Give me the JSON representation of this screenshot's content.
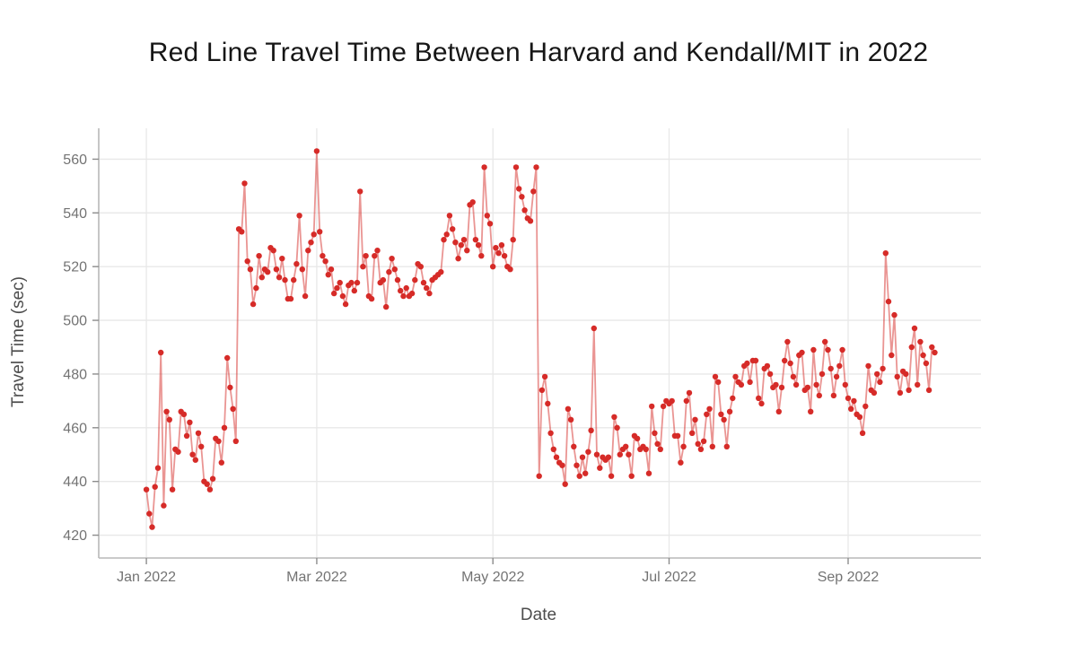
{
  "title": "Red Line Travel Time Between Harvard and Kendall/MIT in 2022",
  "chart_data": {
    "type": "line",
    "title": "Red Line Travel Time Between Harvard and Kendall/MIT in 2022",
    "xlabel": "Date",
    "ylabel": "Travel Time (sec)",
    "legend": "none",
    "grid": true,
    "x_index_unit": "days since Jan 1, 2022 (one point per day)",
    "x_tick_labels": [
      "Jan 2022",
      "Mar 2022",
      "May 2022",
      "Jul 2022",
      "Sep 2022"
    ],
    "x_tick_days": [
      0,
      59,
      120,
      181,
      243
    ],
    "xlim_days": [
      -16.5,
      289
    ],
    "y_ticks": [
      420,
      440,
      460,
      480,
      500,
      520,
      540,
      560
    ],
    "ylim": [
      411.5,
      571.5
    ],
    "colors": {
      "point": "#d62b28",
      "line": "#d62b28",
      "grid": "#e8e8e8",
      "axis_line": "#b8b8b8",
      "tick_mark": "#8c8c8c",
      "tick_label": "#737373"
    },
    "line_opacity": 0.5,
    "series": [
      {
        "name": "travel_time_sec",
        "start_day": 0,
        "values": [
          437,
          428,
          423,
          438,
          445,
          488,
          431,
          466,
          463,
          437,
          452,
          451,
          466,
          465,
          457,
          462,
          450,
          448,
          458,
          453,
          440,
          439,
          437,
          441,
          456,
          455,
          447,
          460,
          486,
          475,
          467,
          455,
          534,
          533,
          551,
          522,
          519,
          506,
          512,
          524,
          516,
          519,
          518,
          527,
          526,
          519,
          516,
          523,
          515,
          508,
          508,
          515,
          521,
          539,
          519,
          509,
          526,
          529,
          532,
          563,
          533,
          524,
          522,
          517,
          519,
          510,
          512,
          514,
          509,
          506,
          513,
          514,
          511,
          514,
          548,
          520,
          524,
          509,
          508,
          524,
          526,
          514,
          515,
          505,
          518,
          523,
          519,
          515,
          511,
          509,
          512,
          509,
          510,
          515,
          521,
          520,
          514,
          512,
          510,
          515,
          516,
          517,
          518,
          530,
          532,
          539,
          534,
          529,
          523,
          528,
          530,
          526,
          543,
          544,
          530,
          528,
          524,
          557,
          539,
          536,
          520,
          527,
          525,
          528,
          524,
          520,
          519,
          530,
          557,
          549,
          546,
          541,
          538,
          537,
          548,
          557,
          442,
          474,
          479,
          469,
          458,
          452,
          449,
          447,
          446,
          439,
          467,
          463,
          453,
          446,
          442,
          449,
          443,
          451,
          459,
          497,
          450,
          445,
          449,
          448,
          449,
          442,
          464,
          460,
          450,
          452,
          453,
          450,
          442,
          457,
          456,
          452,
          453,
          452,
          443,
          468,
          458,
          454,
          452,
          468,
          470,
          469,
          470,
          457,
          457,
          447,
          453,
          470,
          473,
          458,
          463,
          454,
          452,
          455,
          465,
          467,
          453,
          479,
          477,
          465,
          463,
          453,
          466,
          471,
          479,
          477,
          476,
          483,
          484,
          477,
          485,
          485,
          471,
          469,
          482,
          483,
          480,
          475,
          476,
          466,
          475,
          485,
          492,
          484,
          479,
          476,
          487,
          488,
          474,
          475,
          466,
          489,
          476,
          472,
          480,
          492,
          489,
          482,
          472,
          479,
          483,
          489,
          476,
          471,
          467,
          470,
          465,
          464,
          458,
          468,
          483,
          474,
          473,
          480,
          477,
          482,
          525,
          507,
          487,
          502,
          479,
          473,
          481,
          480,
          474,
          490,
          497,
          476,
          492,
          487,
          484,
          474,
          490,
          488
        ]
      }
    ]
  }
}
